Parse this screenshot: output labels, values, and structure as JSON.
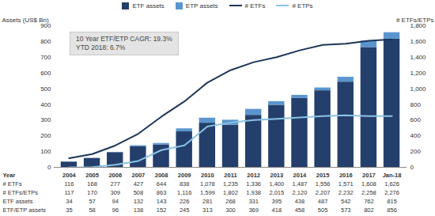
{
  "chart_data": {
    "type": "bar",
    "stacked": true,
    "legend": "top",
    "grid": false,
    "tick_labels": "y",
    "ylabel": "Assets (US$ Bn)",
    "y2label": "# ETFs/ETPs",
    "categories": [
      "2004",
      "2005",
      "2006",
      "2007",
      "2008",
      "2009",
      "2010",
      "2011",
      "2012",
      "2013",
      "2014",
      "2015",
      "2016",
      "2017",
      "Jan-18"
    ],
    "ylim": [
      0,
      900
    ],
    "yticks": [
      0,
      100,
      200,
      300,
      400,
      500,
      600,
      700,
      800,
      900
    ],
    "y2lim": [
      0,
      1800
    ],
    "y2ticks": [
      0,
      200,
      400,
      600,
      800,
      {
        "value": 1000,
        "label": "1,000"
      },
      {
        "value": 1200,
        "label": "1,200"
      },
      {
        "value": 1400,
        "label": "1,400"
      },
      {
        "value": 1600,
        "label": "1,600"
      },
      {
        "value": 1800,
        "label": "1,800"
      }
    ],
    "series": [
      {
        "name": "ETF assets",
        "type": "bar",
        "color": "#243f6b",
        "values": [
          34,
          57,
          94,
          132,
          143,
          226,
          281,
          268,
          331,
          395,
          438,
          487,
          542,
          762,
          815
        ]
      },
      {
        "name": "ETP assets",
        "type": "bar",
        "color": "#5b95cf",
        "values": [
          1,
          1,
          2,
          6,
          9,
          19,
          32,
          32,
          38,
          23,
          20,
          18,
          31,
          40,
          41
        ]
      },
      {
        "name": "# ETFs",
        "type": "line",
        "axis": "y2",
        "color": "#1e3558",
        "values": [
          116,
          168,
          277,
          427,
          644,
          838,
          1078,
          1235,
          1336,
          1400,
          1487,
          1556,
          1571,
          1608,
          1626
        ]
      },
      {
        "name": "# ETPs",
        "type": "line",
        "axis": "y2",
        "color": "#8cc3e6",
        "values": [
          1,
          2,
          32,
          81,
          219,
          278,
          521,
          567,
          602,
          615,
          633,
          651,
          661,
          650,
          650
        ]
      }
    ],
    "annotations": [
      "10 Year ETF/ETP CAGR: 19.3%",
      "YTD 2018: 6.7%"
    ],
    "table": {
      "header": "Year",
      "rows": [
        {
          "label": "# ETFs",
          "values": [
            "116",
            "168",
            "277",
            "427",
            "644",
            "838",
            "1,078",
            "1,235",
            "1,336",
            "1,400",
            "1,487",
            "1,556",
            "1,571",
            "1,608",
            "1,626"
          ]
        },
        {
          "label": "# ETFs/ETPs",
          "values": [
            "117",
            "170",
            "309",
            "508",
            "863",
            "1,116",
            "1,599",
            "1,802",
            "1,938",
            "2,015",
            "2,120",
            "2,207",
            "2,232",
            "2,258",
            "2,276"
          ]
        },
        {
          "label": "ETF assets",
          "values": [
            "34",
            "57",
            "94",
            "132",
            "143",
            "226",
            "281",
            "268",
            "331",
            "395",
            "438",
            "487",
            "542",
            "762",
            "815"
          ]
        },
        {
          "label": "ETF/ETP assets",
          "values": [
            "35",
            "58",
            "96",
            "138",
            "152",
            "245",
            "313",
            "300",
            "369",
            "418",
            "458",
            "505",
            "573",
            "802",
            "856"
          ]
        }
      ]
    }
  }
}
